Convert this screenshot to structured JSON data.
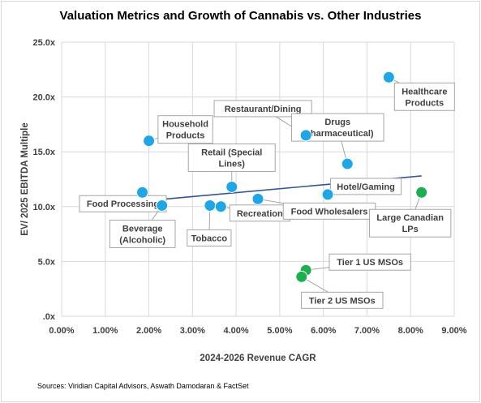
{
  "chart_data": {
    "type": "scatter",
    "title": "Valuation Metrics and Growth of Cannabis vs. Other Industries",
    "xlabel": "2024-2026 Revenue CAGR",
    "ylabel": "EV/ 2025 EBITDA Multiple",
    "xlim": [
      0,
      9
    ],
    "ylim": [
      0,
      25
    ],
    "x_ticks": [
      "0.00%",
      "1.00%",
      "2.00%",
      "3.00%",
      "4.00%",
      "5.00%",
      "6.00%",
      "7.00%",
      "8.00%",
      "9.00%"
    ],
    "y_ticks": [
      ".0x",
      "5.0x",
      "10.0x",
      "15.0x",
      "20.0x",
      "25.0x"
    ],
    "grid": true,
    "trendline": {
      "x": [
        1.85,
        8.25
      ],
      "y": [
        10.5,
        12.8
      ]
    },
    "points": [
      {
        "label": "Food Processing",
        "x": 1.85,
        "y": 11.3,
        "color": "#1ea7e8"
      },
      {
        "label": "Beverage (Alcoholic)",
        "x": 2.3,
        "y": 10.1,
        "color": "#1ea7e8"
      },
      {
        "label": "Household Products",
        "x": 2.0,
        "y": 16.0,
        "color": "#1ea7e8"
      },
      {
        "label": "Tobacco",
        "x": 3.4,
        "y": 10.1,
        "color": "#1ea7e8"
      },
      {
        "label": "Recreation",
        "x": 3.65,
        "y": 10.0,
        "color": "#1ea7e8"
      },
      {
        "label": "Retail (Special Lines)",
        "x": 3.9,
        "y": 11.8,
        "color": "#1ea7e8"
      },
      {
        "label": "Food Wholesalers",
        "x": 4.5,
        "y": 10.7,
        "color": "#1ea7e8"
      },
      {
        "label": "Restaurant/Dining",
        "x": 5.6,
        "y": 16.5,
        "color": "#1ea7e8"
      },
      {
        "label": "Hotel/Gaming",
        "x": 6.1,
        "y": 11.1,
        "color": "#1ea7e8"
      },
      {
        "label": "Drugs (Pharmaceutical)",
        "x": 6.55,
        "y": 13.9,
        "color": "#1ea7e8"
      },
      {
        "label": "Healthcare Products",
        "x": 7.5,
        "y": 21.8,
        "color": "#1ea7e8"
      },
      {
        "label": "Large Canadian LPs",
        "x": 8.25,
        "y": 11.3,
        "color": "#1ab04d"
      },
      {
        "label": "Tier 1 US MSOs",
        "x": 5.6,
        "y": 4.2,
        "color": "#1ab04d"
      },
      {
        "label": "Tier 2 US MSOs",
        "x": 5.5,
        "y": 3.6,
        "color": "#1ab04d"
      }
    ]
  },
  "source_note": "Sources:  Viridian Capital Advisors, Aswath Damodaran & FactSet"
}
